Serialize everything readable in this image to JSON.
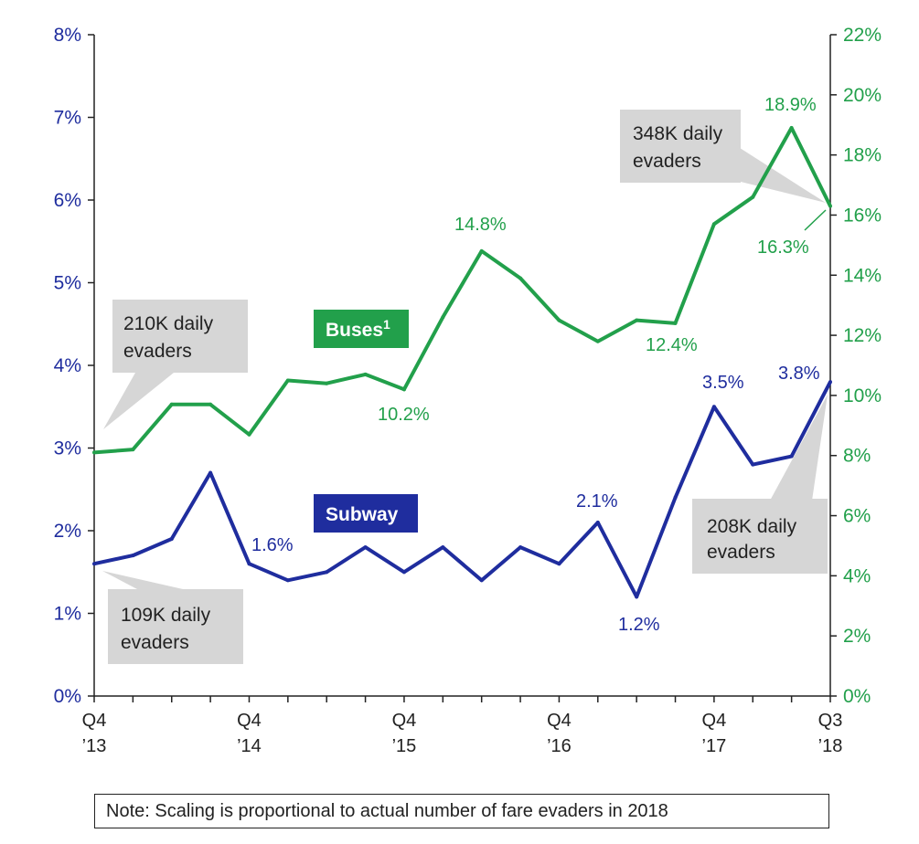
{
  "chart_data": {
    "type": "line",
    "title": "",
    "xlabel": "",
    "ylabel": "",
    "categories": [
      "Q4 2013",
      "Q1 2014",
      "Q2 2014",
      "Q3 2014",
      "Q4 2014",
      "Q1 2015",
      "Q2 2015",
      "Q3 2015",
      "Q4 2015",
      "Q1 2016",
      "Q2 2016",
      "Q3 2016",
      "Q4 2016",
      "Q1 2017",
      "Q2 2017",
      "Q3 2017",
      "Q4 2017",
      "Q1 2018",
      "Q2 2018",
      "Q3 2018"
    ],
    "x_tick_labels": [
      {
        "index": 0,
        "line1": "Q4",
        "line2": "’13"
      },
      {
        "index": 4,
        "line1": "Q4",
        "line2": "’14"
      },
      {
        "index": 8,
        "line1": "Q4",
        "line2": "’15"
      },
      {
        "index": 12,
        "line1": "Q4",
        "line2": "’16"
      },
      {
        "index": 16,
        "line1": "Q4",
        "line2": "’17"
      },
      {
        "index": 19,
        "line1": "Q3",
        "line2": "’18"
      }
    ],
    "left_axis": {
      "ylim": [
        0,
        8
      ],
      "ticks": [
        "0%",
        "1%",
        "2%",
        "3%",
        "4%",
        "5%",
        "6%",
        "7%",
        "8%"
      ]
    },
    "right_axis": {
      "ylim": [
        0,
        22
      ],
      "ticks": [
        "0%",
        "2%",
        "4%",
        "6%",
        "8%",
        "10%",
        "12%",
        "14%",
        "16%",
        "18%",
        "20%",
        "22%"
      ]
    },
    "grid": false,
    "series": [
      {
        "name": "Buses¹",
        "axis": "right",
        "color": "#22a04b",
        "values": [
          8.1,
          8.2,
          9.7,
          9.7,
          8.7,
          10.5,
          10.4,
          10.7,
          10.2,
          12.6,
          14.8,
          13.9,
          12.5,
          11.8,
          12.5,
          12.4,
          15.7,
          16.6,
          18.9,
          16.3
        ]
      },
      {
        "name": "Subway",
        "axis": "left",
        "color": "#1f2d9e",
        "values": [
          1.6,
          1.7,
          1.9,
          2.7,
          1.6,
          1.4,
          1.5,
          1.8,
          1.5,
          1.8,
          1.4,
          1.8,
          1.6,
          2.1,
          1.2,
          2.4,
          3.5,
          2.8,
          2.9,
          3.8
        ]
      }
    ],
    "data_labels": {
      "buses": [
        {
          "index": 8,
          "text": "10.2%"
        },
        {
          "index": 10,
          "text": "14.8%"
        },
        {
          "index": 15,
          "text": "12.4%"
        },
        {
          "index": 18,
          "text": "18.9%"
        },
        {
          "index": 19,
          "text": "16.3%"
        }
      ],
      "subway": [
        {
          "index": 4,
          "text": "1.6%"
        },
        {
          "index": 13,
          "text": "2.1%"
        },
        {
          "index": 14,
          "text": "1.2%"
        },
        {
          "index": 16,
          "text": "3.5%"
        },
        {
          "index": 19,
          "text": "3.8%"
        }
      ]
    },
    "series_badges": {
      "buses": {
        "label": "Buses",
        "sup": "1",
        "color": "#22a04b"
      },
      "subway": {
        "label": "Subway",
        "color": "#1f2d9e"
      }
    },
    "callouts": [
      {
        "line1": "210K daily",
        "line2": "evaders"
      },
      {
        "line1": "348K daily",
        "line2": "evaders"
      },
      {
        "line1": "109K daily",
        "line2": "evaders"
      },
      {
        "line1": "208K daily",
        "line2": "evaders"
      }
    ]
  },
  "note": "Note: Scaling is proportional to actual number of fare evaders in 2018"
}
